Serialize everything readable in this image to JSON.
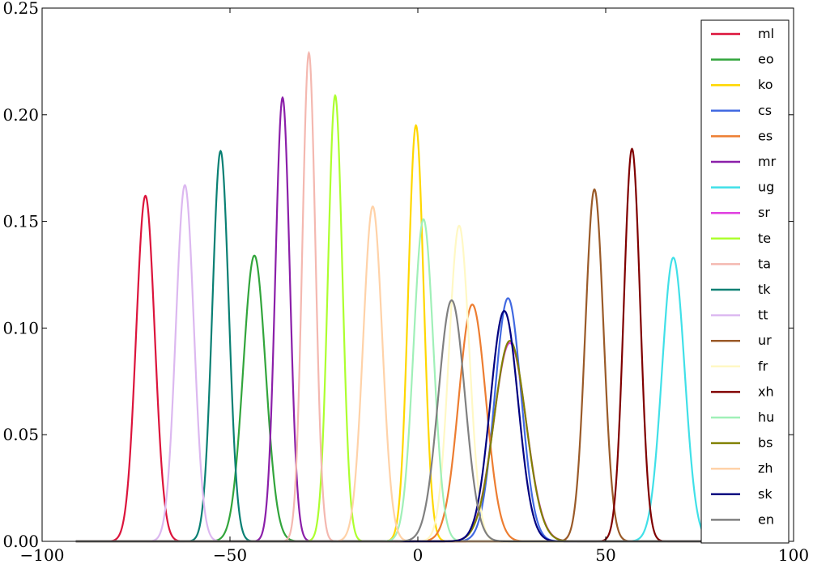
{
  "chart_data": {
    "type": "line",
    "title": "",
    "xlabel": "",
    "ylabel": "",
    "xlim": [
      -100,
      100
    ],
    "ylim": [
      0,
      0.25
    ],
    "xticks": [
      -100,
      -50,
      0,
      50,
      100
    ],
    "xtick_labels": [
      "−100",
      "−50",
      "0",
      "50",
      "100"
    ],
    "yticks": [
      0,
      0.05,
      0.1,
      0.15,
      0.2,
      0.25
    ],
    "ytick_labels": [
      "0.00",
      "0.05",
      "0.10",
      "0.15",
      "0.20",
      "0.25"
    ],
    "grid": false,
    "legend_position": "right",
    "x_range_drawn": [
      -91,
      96
    ],
    "series": [
      {
        "name": "ml",
        "color": "#dc143c",
        "mean": -72.5,
        "peak": 0.162,
        "sd": 2.46
      },
      {
        "name": "eo",
        "color": "#32a53c",
        "mean": -43.5,
        "peak": 0.134,
        "sd": 2.98
      },
      {
        "name": "ko",
        "color": "#ffd700",
        "mean": -0.5,
        "peak": 0.195,
        "sd": 2.05
      },
      {
        "name": "cs",
        "color": "#4169e1",
        "mean": 24.0,
        "peak": 0.114,
        "sd": 3.5
      },
      {
        "name": "es",
        "color": "#ed7d31",
        "mean": 14.5,
        "peak": 0.111,
        "sd": 3.6
      },
      {
        "name": "mr",
        "color": "#8b1fa9",
        "mean": -36.0,
        "peak": 0.208,
        "sd": 1.92
      },
      {
        "name": "ug",
        "color": "#40e0e8",
        "mean": 68.0,
        "peak": 0.133,
        "sd": 3.0
      },
      {
        "name": "sr",
        "color": "#e040e0",
        "mean": 24.5,
        "peak": 0.093,
        "sd": 4.3
      },
      {
        "name": "te",
        "color": "#adff2f",
        "mean": -22.0,
        "peak": 0.209,
        "sd": 1.91
      },
      {
        "name": "ta",
        "color": "#f4b8b0",
        "mean": -29.0,
        "peak": 0.229,
        "sd": 1.74
      },
      {
        "name": "tk",
        "color": "#0a8074",
        "mean": -52.5,
        "peak": 0.183,
        "sd": 2.18
      },
      {
        "name": "tt",
        "color": "#dcb8f0",
        "mean": -62.0,
        "peak": 0.167,
        "sd": 2.39
      },
      {
        "name": "ur",
        "color": "#9a5a28",
        "mean": 47.0,
        "peak": 0.165,
        "sd": 2.42
      },
      {
        "name": "fr",
        "color": "#fff8c4",
        "mean": 11.0,
        "peak": 0.148,
        "sd": 2.7
      },
      {
        "name": "xh",
        "color": "#800000",
        "mean": 57.0,
        "peak": 0.184,
        "sd": 2.17
      },
      {
        "name": "hu",
        "color": "#a0f0b8",
        "mean": 1.5,
        "peak": 0.151,
        "sd": 2.64
      },
      {
        "name": "bs",
        "color": "#808000",
        "mean": 24.5,
        "peak": 0.094,
        "sd": 4.25
      },
      {
        "name": "zh",
        "color": "#ffd2a8",
        "mean": -12.0,
        "peak": 0.157,
        "sd": 2.54
      },
      {
        "name": "sk",
        "color": "#000080",
        "mean": 23.0,
        "peak": 0.108,
        "sd": 3.7
      },
      {
        "name": "en",
        "color": "#808080",
        "mean": 9.0,
        "peak": 0.113,
        "sd": 3.53
      }
    ]
  }
}
